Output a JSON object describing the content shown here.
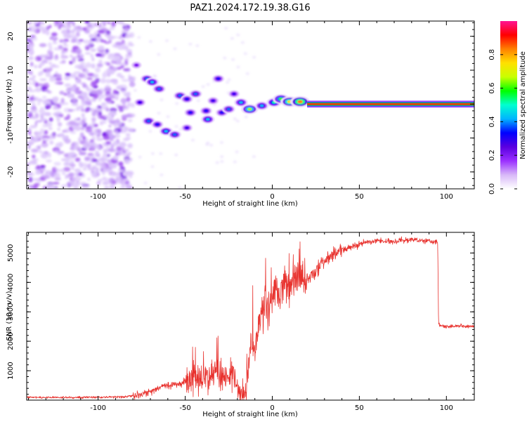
{
  "figure_title": "PAZ1.2024.172.19.38.G16",
  "colors": {
    "snr_line": "#e8322e",
    "frame": "#000000",
    "background": "#ffffff"
  },
  "chart_data": [
    {
      "type": "heatmap",
      "title": "",
      "xlabel": "Height of straight line (km)",
      "ylabel": "Frequency (Hz)",
      "xlim": [
        -141,
        116
      ],
      "ylim": [
        -25,
        24.5
      ],
      "x_ticks": [
        -100,
        -50,
        0,
        50,
        100
      ],
      "y_ticks": [
        -20,
        -10,
        0,
        10,
        20
      ],
      "colorbar": {
        "label": "Normalized spectral amplitude",
        "range": [
          0,
          1
        ],
        "ticks": [
          0.0,
          0.2,
          0.4,
          0.6,
          0.8
        ],
        "colormap": [
          "#ffffff",
          "#d8b8f8",
          "#9b30ff",
          "#5a00e0",
          "#0000ff",
          "#00b4ff",
          "#00ffd0",
          "#00ff00",
          "#c8ff00",
          "#ffe000",
          "#ff8000",
          "#ff0000",
          "#ff1493"
        ]
      },
      "features": {
        "noise_region_x": [
          -141,
          -80
        ],
        "steady_tone_x": [
          20,
          116
        ],
        "steady_tone_frequency": 0,
        "blobs": [
          {
            "x": -78,
            "y": 11.5,
            "v": 0.12
          },
          {
            "x": -76,
            "y": 0.5,
            "v": 0.2
          },
          {
            "x": -72,
            "y": 7.5,
            "v": 0.3
          },
          {
            "x": -69,
            "y": 6.5,
            "v": 0.35
          },
          {
            "x": -65,
            "y": 4.5,
            "v": 0.3
          },
          {
            "x": -71,
            "y": -5,
            "v": 0.3
          },
          {
            "x": -66,
            "y": -6,
            "v": 0.25
          },
          {
            "x": -61,
            "y": -8,
            "v": 0.35
          },
          {
            "x": -56,
            "y": -9,
            "v": 0.3
          },
          {
            "x": -53,
            "y": 2.5,
            "v": 0.3
          },
          {
            "x": -49,
            "y": 1.5,
            "v": 0.25
          },
          {
            "x": -47,
            "y": -2.5,
            "v": 0.25
          },
          {
            "x": -49,
            "y": -7,
            "v": 0.2
          },
          {
            "x": -44,
            "y": 3,
            "v": 0.3
          },
          {
            "x": -38,
            "y": -2,
            "v": 0.25
          },
          {
            "x": -37,
            "y": -4.5,
            "v": 0.35
          },
          {
            "x": -34,
            "y": 1,
            "v": 0.2
          },
          {
            "x": -31,
            "y": 7.5,
            "v": 0.25
          },
          {
            "x": -29,
            "y": -2.5,
            "v": 0.25
          },
          {
            "x": -25,
            "y": -1.5,
            "v": 0.3
          },
          {
            "x": -22,
            "y": 3,
            "v": 0.2
          },
          {
            "x": -18,
            "y": 0.5,
            "v": 0.35
          },
          {
            "x": -13,
            "y": -1.5,
            "v": 0.6
          },
          {
            "x": -6,
            "y": -0.5,
            "v": 0.35
          },
          {
            "x": 1,
            "y": 0.5,
            "v": 0.45
          },
          {
            "x": 5,
            "y": 1.5,
            "v": 0.55
          },
          {
            "x": 10,
            "y": 0.7,
            "v": 0.7
          },
          {
            "x": 16,
            "y": 0.7,
            "v": 0.8
          }
        ]
      }
    },
    {
      "type": "line",
      "title": "",
      "xlabel": "Height of straight line (km)",
      "ylabel": "SNR (10 * v/v)",
      "xlim": [
        -141,
        116
      ],
      "ylim": [
        0,
        5700
      ],
      "x_ticks": [
        -100,
        -50,
        0,
        50,
        100
      ],
      "y_ticks": [
        1000,
        2000,
        3000,
        4000,
        5000
      ],
      "series": [
        {
          "x": [
            -141,
            -120,
            -100,
            -85,
            -75,
            -70,
            -65,
            -60,
            -55,
            -50,
            -45,
            -40,
            -35,
            -30,
            -25,
            -22,
            -19,
            -17,
            -15,
            -13,
            -10,
            -7,
            -5,
            -2,
            0,
            3,
            6,
            10,
            15,
            20,
            25,
            30,
            35,
            40,
            45,
            50,
            60,
            70,
            80,
            90,
            95,
            95.5,
            100,
            110,
            116
          ],
          "y": [
            100,
            90,
            100,
            110,
            200,
            300,
            430,
            500,
            530,
            600,
            700,
            800,
            900,
            850,
            800,
            850,
            200,
            80,
            150,
            1500,
            2100,
            2700,
            3100,
            3300,
            3400,
            3700,
            3800,
            4000,
            4000,
            4100,
            4400,
            4700,
            4900,
            5100,
            5200,
            5300,
            5400,
            5400,
            5450,
            5400,
            5400,
            2550,
            2500,
            2520,
            2500
          ]
        }
      ]
    }
  ]
}
